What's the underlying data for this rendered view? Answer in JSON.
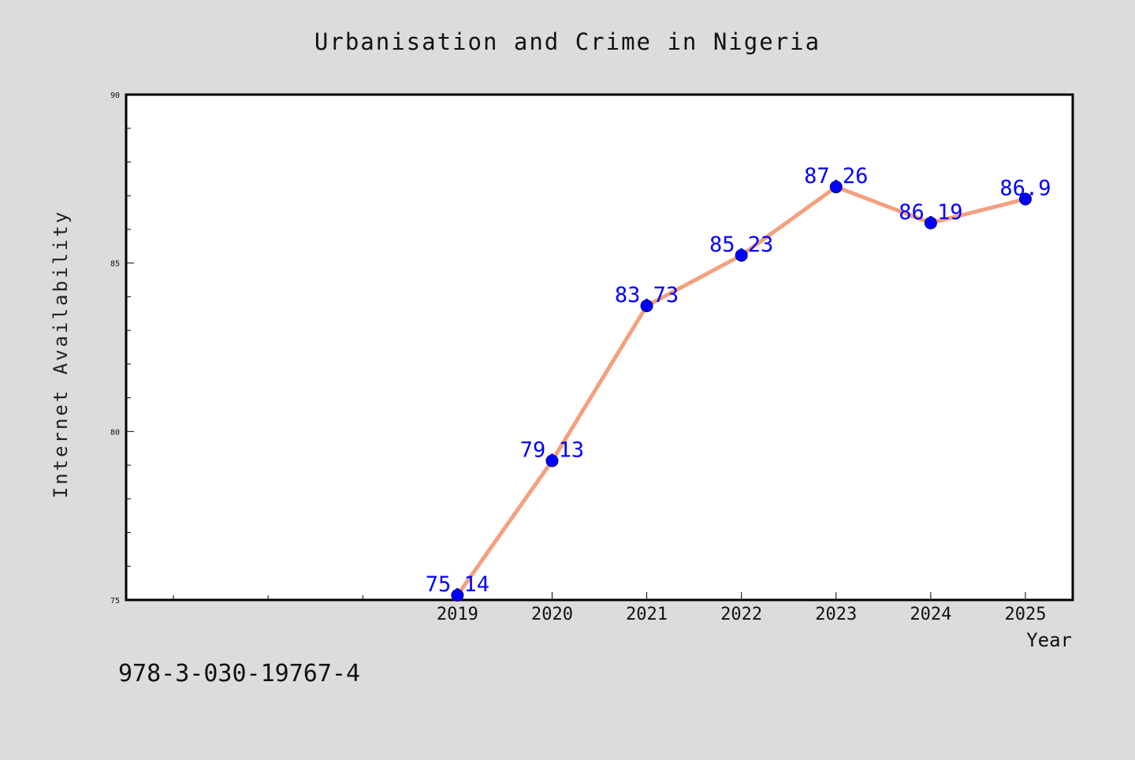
{
  "chart_data": {
    "type": "line",
    "title": "Urbanisation and Crime in Nigeria",
    "xlabel": "Year",
    "ylabel": "Internet Availability",
    "x": [
      2019,
      2020,
      2021,
      2022,
      2023,
      2024,
      2025
    ],
    "x_tick_labels": [
      "2019",
      "2020",
      "2021",
      "2022",
      "2023",
      "2024",
      "2025"
    ],
    "series": [
      {
        "values": [
          75.14,
          79.13,
          83.73,
          85.23,
          87.26,
          86.19,
          86.9
        ]
      }
    ],
    "data_labels": [
      "75.14",
      "79.13",
      "83.73",
      "85.23",
      "87.26",
      "86.19",
      "86.9"
    ],
    "xlim": [
      2015.5,
      2025.5
    ],
    "ylim": [
      75,
      90
    ],
    "y_tick_labels": [
      "75",
      "80",
      "85",
      "90"
    ],
    "y_ticks": [
      75,
      80,
      85,
      90
    ],
    "grid": false,
    "line_color": "#f4a07e",
    "marker_color": "#0000ff",
    "label_color": "#0000ff"
  },
  "annotation": "978-3-030-19767-4",
  "colors": {
    "background": "#dcdcdc",
    "plot_background": "#ffffff"
  }
}
